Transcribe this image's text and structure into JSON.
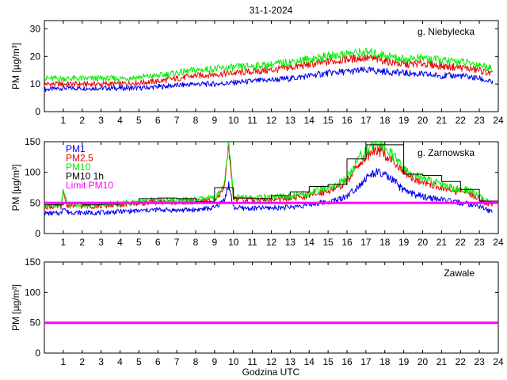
{
  "title": "31-1-2024",
  "xlabel": "Godzina UTC",
  "colors": {
    "pm1": "#0000ee",
    "pm25": "#ee0000",
    "pm10": "#00ee00",
    "pm10_1h": "#000000",
    "limit": "#ff00ff"
  },
  "chart_data": [
    {
      "type": "line",
      "station": "g. Niebylecka",
      "ylabel": "PM [µg/m³]",
      "xlim": [
        0,
        24
      ],
      "ylim": [
        0,
        33
      ],
      "yticks": [
        0,
        10,
        20,
        30
      ],
      "xticks": [
        1,
        2,
        3,
        4,
        5,
        6,
        7,
        8,
        9,
        10,
        11,
        12,
        13,
        14,
        15,
        16,
        17,
        18,
        19,
        20,
        21,
        22,
        23,
        24
      ],
      "series": [
        {
          "name": "PM1",
          "color": "#0000ee",
          "x": [
            0,
            1,
            2,
            3,
            4,
            5,
            6,
            7,
            8,
            9,
            10,
            11,
            12,
            13,
            14,
            15,
            16,
            17,
            18,
            19,
            20,
            21,
            22,
            23,
            23.7
          ],
          "values": [
            8,
            8.5,
            8.5,
            8.5,
            8.5,
            8.5,
            9,
            9.5,
            10,
            10,
            10.5,
            11,
            11.5,
            12,
            13,
            14,
            14.5,
            15,
            14.5,
            14,
            13.5,
            13,
            13,
            12,
            10.5
          ]
        },
        {
          "name": "PM2.5",
          "color": "#ee0000",
          "x": [
            0,
            1,
            2,
            3,
            4,
            5,
            6,
            7,
            8,
            9,
            10,
            11,
            12,
            13,
            14,
            15,
            16,
            17,
            18,
            19,
            20,
            21,
            22,
            23,
            23.7
          ],
          "values": [
            10,
            10,
            10,
            10,
            10,
            10.5,
            11,
            12,
            13,
            13.5,
            14,
            14.5,
            15,
            16,
            17,
            18,
            19,
            19.5,
            18.5,
            17,
            17.5,
            16.5,
            16,
            15,
            13.5
          ]
        },
        {
          "name": "PM10",
          "color": "#00ee00",
          "x": [
            0,
            1,
            2,
            3,
            4,
            5,
            6,
            7,
            8,
            9,
            10,
            11,
            12,
            13,
            14,
            15,
            16,
            17,
            18,
            19,
            20,
            21,
            22,
            23,
            23.7
          ],
          "values": [
            12,
            12,
            12,
            12,
            12,
            12.5,
            13,
            14,
            15,
            15.5,
            16,
            16.5,
            17,
            18,
            19,
            20,
            21,
            21.5,
            20.5,
            19,
            19.5,
            18.5,
            18,
            17,
            15.5
          ]
        }
      ]
    },
    {
      "type": "line",
      "station": "g. Zarnowska",
      "ylabel": "PM [µg/m³]",
      "xlim": [
        0,
        24
      ],
      "ylim": [
        0,
        150
      ],
      "yticks": [
        0,
        50,
        100,
        150
      ],
      "xticks": [
        1,
        2,
        3,
        4,
        5,
        6,
        7,
        8,
        9,
        10,
        11,
        12,
        13,
        14,
        15,
        16,
        17,
        18,
        19,
        20,
        21,
        22,
        23,
        24
      ],
      "legend": [
        "PM1",
        "PM2.5",
        "PM10",
        "PM10 1h",
        "Limit PM10"
      ],
      "limit": 50,
      "series": [
        {
          "name": "PM1",
          "color": "#0000ee",
          "x": [
            0,
            0.9,
            1,
            1.2,
            2,
            3,
            4,
            5,
            6,
            7,
            8,
            9,
            9.5,
            9.75,
            10,
            11,
            12,
            13,
            14,
            15,
            15.5,
            16,
            16.5,
            17,
            17.5,
            18,
            18.5,
            19,
            19.5,
            20,
            20.5,
            21,
            21.5,
            22,
            22.5,
            23,
            23.3,
            23.7
          ],
          "values": [
            33,
            33,
            45,
            35,
            34,
            34,
            36,
            37,
            39,
            38,
            39,
            42,
            55,
            80,
            42,
            41,
            42,
            43,
            47,
            52,
            55,
            62,
            75,
            90,
            100,
            95,
            85,
            70,
            65,
            60,
            58,
            55,
            52,
            50,
            48,
            45,
            40,
            35
          ]
        },
        {
          "name": "PM2.5",
          "color": "#ee0000",
          "x": [
            0,
            0.9,
            1,
            1.2,
            2,
            3,
            4,
            5,
            6,
            7,
            8,
            9,
            9.5,
            9.75,
            10,
            11,
            12,
            13,
            14,
            15,
            15.5,
            16,
            16.5,
            17,
            17.5,
            18,
            18.5,
            19,
            19.5,
            20,
            20.5,
            21,
            21.5,
            22,
            22.5,
            23,
            23.3,
            23.7
          ],
          "values": [
            44,
            44,
            68,
            46,
            45,
            45,
            47,
            50,
            52,
            51,
            52,
            55,
            70,
            145,
            56,
            54,
            55,
            57,
            62,
            70,
            75,
            85,
            110,
            125,
            140,
            130,
            118,
            98,
            90,
            85,
            80,
            75,
            70,
            68,
            65,
            58,
            50,
            48
          ]
        },
        {
          "name": "PM10",
          "color": "#00ee00",
          "x": [
            0,
            0.9,
            1,
            1.2,
            2,
            3,
            4,
            5,
            6,
            7,
            8,
            9,
            9.5,
            9.75,
            10,
            11,
            12,
            13,
            14,
            15,
            15.5,
            16,
            16.5,
            17,
            17.5,
            18,
            18.5,
            19,
            19.5,
            20,
            20.5,
            21,
            21.5,
            22,
            22.5,
            23,
            23.3,
            23.7
          ],
          "values": [
            46,
            46,
            72,
            48,
            47,
            47,
            49,
            52,
            55,
            54,
            55,
            58,
            75,
            150,
            60,
            58,
            59,
            61,
            66,
            75,
            80,
            90,
            118,
            135,
            150,
            140,
            125,
            105,
            96,
            90,
            86,
            80,
            75,
            72,
            70,
            62,
            54,
            52
          ]
        },
        {
          "name": "PM10 1h",
          "color": "#000000",
          "step": true,
          "x": [
            0,
            1,
            2,
            3,
            4,
            5,
            6,
            7,
            8,
            9,
            10,
            11,
            12,
            13,
            14,
            15,
            16,
            17,
            18,
            19,
            20,
            21,
            22,
            23
          ],
          "values": [
            47,
            50,
            47,
            48,
            50,
            57,
            58,
            57,
            52,
            75,
            58,
            57,
            62,
            68,
            77,
            80,
            122,
            145,
            145,
            97,
            95,
            85,
            72,
            53
          ]
        },
        {
          "name": "Limit PM10",
          "color": "#ff00ff",
          "x": [
            0,
            24
          ],
          "values": [
            50,
            50
          ]
        }
      ]
    },
    {
      "type": "line",
      "station": "Zawale",
      "ylabel": "PM [µg/m³]",
      "xlim": [
        0,
        24
      ],
      "ylim": [
        0,
        150
      ],
      "yticks": [
        0,
        50,
        100,
        150
      ],
      "xticks": [
        1,
        2,
        3,
        4,
        5,
        6,
        7,
        8,
        9,
        10,
        11,
        12,
        13,
        14,
        15,
        16,
        17,
        18,
        19,
        20,
        21,
        22,
        23,
        24
      ],
      "limit": 50,
      "series": [
        {
          "name": "Limit PM10",
          "color": "#ff00ff",
          "x": [
            0,
            24
          ],
          "values": [
            50,
            50
          ]
        }
      ]
    }
  ]
}
